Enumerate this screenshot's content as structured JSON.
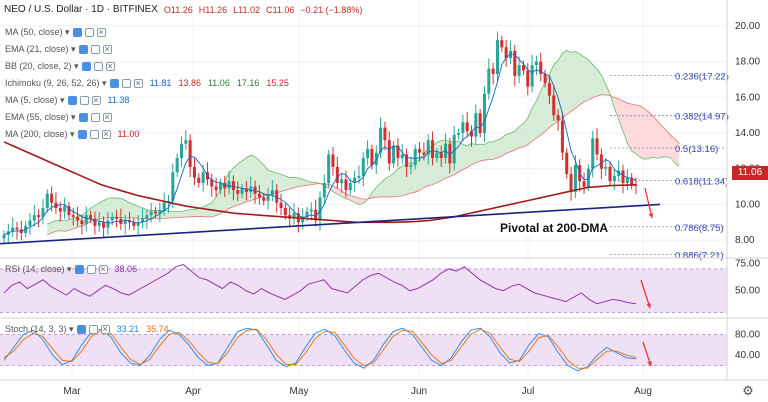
{
  "header": {
    "symbol": "NEO / U.S. Dollar · 1D · BITFINEX",
    "o": "O11.26",
    "h": "H11.26",
    "l": "L11.02",
    "c": "C11.06",
    "chg": "−0.21 (−1.88%)"
  },
  "indicators": [
    {
      "label": "MA (50, close)",
      "value": "",
      "color": ""
    },
    {
      "label": "EMA (21, close)",
      "value": "",
      "color": ""
    },
    {
      "label": "BB (20, close, 2)",
      "value": "",
      "color": ""
    },
    {
      "label": "Ichimoku (9, 26, 52, 26)",
      "value": "",
      "color": ""
    },
    {
      "label": "MA (5, close)",
      "value": "11.38",
      "color": "#1565c0"
    },
    {
      "label": "EMA (55, close)",
      "value": "",
      "color": ""
    },
    {
      "label": "MA (200, close)",
      "value": "11.00",
      "color": "#c62828"
    }
  ],
  "ichimoku_values": [
    "11.81",
    "13.86",
    "11.06",
    "17.16",
    "15.25"
  ],
  "ichimoku_colors": [
    "#1565c0",
    "#c62828",
    "#2e7d32",
    "#2e7d32",
    "#c62828"
  ],
  "rsi_label": "RSI (14, close)",
  "rsi_value": "38.06",
  "stoch_label": "Stoch (14, 3, 3)",
  "stoch_values": [
    "33.21",
    "35.74"
  ],
  "annotation": "Pivotal at 200-DMA",
  "last_price": "11.06",
  "colors": {
    "up": "#26a69a",
    "down": "#d32f2f",
    "ma200": "#a31a1a",
    "trendline": "#1a237e",
    "cloud_green": "#c8e6c9",
    "cloud_red": "#ffcdd2",
    "rsi_fill": "#efe0f5",
    "osc": "#8e24aa"
  },
  "chart_data": {
    "type": "candlestick",
    "x_ticks": [
      "Mar",
      "Apr",
      "May",
      "Jun",
      "Jul",
      "Aug"
    ],
    "y_ticks": [
      "8.00",
      "10.00",
      "12.00",
      "14.00",
      "16.00",
      "18.00",
      "20.00"
    ],
    "ylim": [
      7,
      21
    ],
    "fib_levels": [
      {
        "label": "0.236(17.22)",
        "value": 17.22
      },
      {
        "label": "0.382(14.97)",
        "value": 14.97
      },
      {
        "label": "0.5(13.16)",
        "value": 13.16
      },
      {
        "label": "0.618(11.34)",
        "value": 11.34
      },
      {
        "label": "0.786(8.75)",
        "value": 8.75
      },
      {
        "label": "0.886(7.21)",
        "value": 7.21
      }
    ],
    "close_series": [
      8.3,
      8.5,
      8.7,
      8.6,
      8.4,
      8.8,
      9.1,
      9.4,
      9.3,
      9.8,
      10.6,
      10.1,
      9.8,
      9.6,
      9.9,
      9.4,
      9.3,
      9.1,
      8.9,
      9.4,
      9.2,
      8.8,
      9.0,
      8.7,
      9.1,
      9.3,
      9.2,
      8.9,
      9.1,
      9.0,
      8.8,
      9.0,
      9.2,
      9.4,
      9.6,
      9.5,
      9.7,
      10.1,
      10.2,
      11.8,
      12.6,
      13.4,
      13.6,
      12.1,
      11.5,
      11.2,
      11.8,
      11.4,
      11.0,
      10.8,
      11.2,
      10.9,
      11.3,
      10.8,
      10.6,
      10.9,
      10.7,
      11.0,
      10.6,
      10.4,
      10.2,
      10.5,
      10.8,
      10.1,
      9.8,
      9.4,
      9.2,
      9.5,
      9.0,
      9.3,
      9.6,
      9.7,
      9.1,
      10.4,
      11.2,
      12.8,
      12.1,
      11.2,
      11.4,
      10.8,
      11.2,
      11.5,
      11.6,
      12.6,
      13.1,
      12.2,
      12.9,
      14.3,
      13.6,
      12.3,
      13.3,
      12.6,
      12.8,
      12.1,
      12.2,
      13.1,
      12.9,
      12.8,
      13.6,
      12.6,
      12.9,
      12.6,
      13.4,
      12.3,
      13.9,
      14.0,
      14.6,
      14.1,
      13.8,
      15.1,
      14.0,
      16.2,
      17.6,
      17.3,
      19.2,
      18.8,
      18.2,
      18.6,
      17.2,
      17.8,
      17.5,
      16.6,
      17.8,
      18.0,
      17.3,
      16.8,
      16.1,
      15.0,
      14.7,
      12.9,
      11.7,
      10.7,
      12.2,
      11.3,
      11.0,
      12.0,
      13.7,
      12.8,
      12.0,
      12.1,
      11.3,
      11.6,
      11.9,
      11.2,
      11.5,
      11.1,
      11.06
    ],
    "ma200_series": [
      13.5,
      13.2,
      12.9,
      12.6,
      12.3,
      12.0,
      11.7,
      11.4,
      11.1,
      10.9,
      10.7,
      10.5,
      10.35,
      10.2,
      10.05,
      9.9,
      9.8,
      9.7,
      9.6,
      9.5,
      9.45,
      9.4,
      9.35,
      9.3,
      9.25,
      9.2,
      9.15,
      9.1,
      9.05,
      9.0,
      9.0,
      9.0,
      9.0,
      9.02,
      9.05,
      9.1,
      9.2,
      9.3,
      9.45,
      9.6,
      9.75,
      9.9,
      10.05,
      10.2,
      10.35,
      10.5,
      10.65,
      10.8,
      10.95,
      11.0,
      11.06,
      11.08,
      11.1
    ],
    "rsi": {
      "label": "RSI (14, close)",
      "value": 38.06,
      "ylim": [
        25,
        80
      ],
      "ticks": [
        "50.00",
        "75.00"
      ],
      "band": [
        30,
        70
      ],
      "series": [
        48,
        55,
        58,
        52,
        56,
        60,
        54,
        50,
        46,
        52,
        48,
        45,
        50,
        55,
        52,
        48,
        46,
        50,
        54,
        58,
        62,
        66,
        72,
        74,
        68,
        62,
        60,
        56,
        52,
        58,
        55,
        50,
        47,
        52,
        48,
        45,
        42,
        46,
        50,
        56,
        58,
        60,
        52,
        50,
        48,
        54,
        60,
        64,
        66,
        62,
        58,
        55,
        50,
        52,
        56,
        60,
        66,
        70,
        68,
        72,
        66,
        60,
        56,
        52,
        50,
        54,
        56,
        52,
        48,
        46,
        44,
        42,
        40,
        44,
        48,
        42,
        38,
        40,
        42,
        41,
        39,
        38.06
      ]
    },
    "stoch": {
      "label": "Stoch (14, 3, 3)",
      "k": 33.21,
      "d": 35.74,
      "ylim": [
        0,
        100
      ],
      "ticks": [
        "40.00",
        "80.00"
      ],
      "band": [
        20,
        80
      ],
      "k_series": [
        30,
        55,
        80,
        88,
        70,
        40,
        22,
        30,
        60,
        85,
        90,
        75,
        45,
        25,
        20,
        40,
        70,
        88,
        80,
        60,
        35,
        20,
        25,
        55,
        85,
        92,
        88,
        60,
        30,
        18,
        25,
        55,
        82,
        90,
        78,
        50,
        25,
        15,
        30,
        60,
        85,
        92,
        80,
        55,
        30,
        20,
        35,
        65,
        88,
        92,
        75,
        45,
        25,
        30,
        60,
        82,
        75,
        45,
        20,
        10,
        18,
        40,
        55,
        45,
        35,
        33.21
      ],
      "d_series": [
        35,
        48,
        70,
        82,
        76,
        52,
        30,
        28,
        48,
        76,
        88,
        82,
        56,
        32,
        22,
        32,
        58,
        80,
        84,
        68,
        45,
        26,
        24,
        45,
        74,
        88,
        90,
        70,
        42,
        22,
        22,
        44,
        72,
        86,
        84,
        60,
        34,
        20,
        25,
        50,
        76,
        88,
        86,
        64,
        40,
        24,
        30,
        55,
        80,
        90,
        82,
        56,
        32,
        28,
        48,
        74,
        78,
        56,
        30,
        15,
        15,
        32,
        48,
        48,
        40,
        35.74
      ]
    }
  }
}
